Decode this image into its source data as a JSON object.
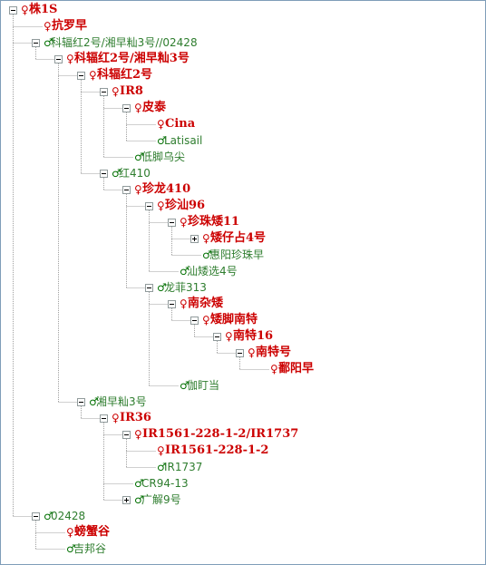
{
  "tree": {
    "nodes": [
      {
        "name": "株1S",
        "sex": "female",
        "expander": "minus"
      },
      {
        "name": "抗罗早",
        "sex": "female",
        "expander": null
      },
      {
        "name": "科辐红2号/湘早籼3号//02428",
        "sex": "male",
        "expander": "minus"
      },
      {
        "name": "科辐红2号/湘早籼3号",
        "sex": "female",
        "expander": "minus"
      },
      {
        "name": "科辐红2号",
        "sex": "female",
        "expander": "minus"
      },
      {
        "name": "IR8",
        "sex": "female",
        "expander": "minus"
      },
      {
        "name": "皮泰",
        "sex": "female",
        "expander": "minus"
      },
      {
        "name": "Cina",
        "sex": "female",
        "expander": null
      },
      {
        "name": "Latisail",
        "sex": "male",
        "expander": null
      },
      {
        "name": "低脚乌尖",
        "sex": "male",
        "expander": null
      },
      {
        "name": "红410",
        "sex": "male",
        "expander": "minus"
      },
      {
        "name": "珍龙410",
        "sex": "female",
        "expander": "minus"
      },
      {
        "name": "珍汕96",
        "sex": "female",
        "expander": "minus"
      },
      {
        "name": "珍珠矮11",
        "sex": "female",
        "expander": "minus"
      },
      {
        "name": "矮仔占4号",
        "sex": "female",
        "expander": "plus"
      },
      {
        "name": "惠阳珍珠早",
        "sex": "male",
        "expander": null
      },
      {
        "name": "汕矮选4号",
        "sex": "male",
        "expander": null
      },
      {
        "name": "龙菲313",
        "sex": "male",
        "expander": "minus"
      },
      {
        "name": "南杂矮",
        "sex": "female",
        "expander": "minus"
      },
      {
        "name": "矮脚南特",
        "sex": "female",
        "expander": "minus"
      },
      {
        "name": "南特16",
        "sex": "female",
        "expander": "minus"
      },
      {
        "name": "南特号",
        "sex": "female",
        "expander": "minus"
      },
      {
        "name": "鄱阳早",
        "sex": "female",
        "expander": null
      },
      {
        "name": "伽盯当",
        "sex": "male",
        "expander": null
      },
      {
        "name": "湘早籼3号",
        "sex": "male",
        "expander": "minus"
      },
      {
        "name": "IR36",
        "sex": "female",
        "expander": "minus"
      },
      {
        "name": "IR1561-228-1-2/IR1737",
        "sex": "female",
        "expander": "minus"
      },
      {
        "name": "IR1561-228-1-2",
        "sex": "female",
        "expander": null
      },
      {
        "name": "IR1737",
        "sex": "male",
        "expander": null
      },
      {
        "name": "CR94-13",
        "sex": "male",
        "expander": null
      },
      {
        "name": "广解9号",
        "sex": "male",
        "expander": "plus"
      },
      {
        "name": "02428",
        "sex": "male",
        "expander": "minus"
      },
      {
        "name": "螃蟹谷",
        "sex": "female",
        "expander": null
      },
      {
        "name": "吉邦谷",
        "sex": "male",
        "expander": null
      }
    ]
  },
  "symbols": {
    "female": "♀",
    "male": "♂"
  },
  "colors": {
    "female": "#cc0000",
    "male": "#2e7d2e",
    "lines": "#a0a0a0",
    "border": "#7f9db9"
  }
}
